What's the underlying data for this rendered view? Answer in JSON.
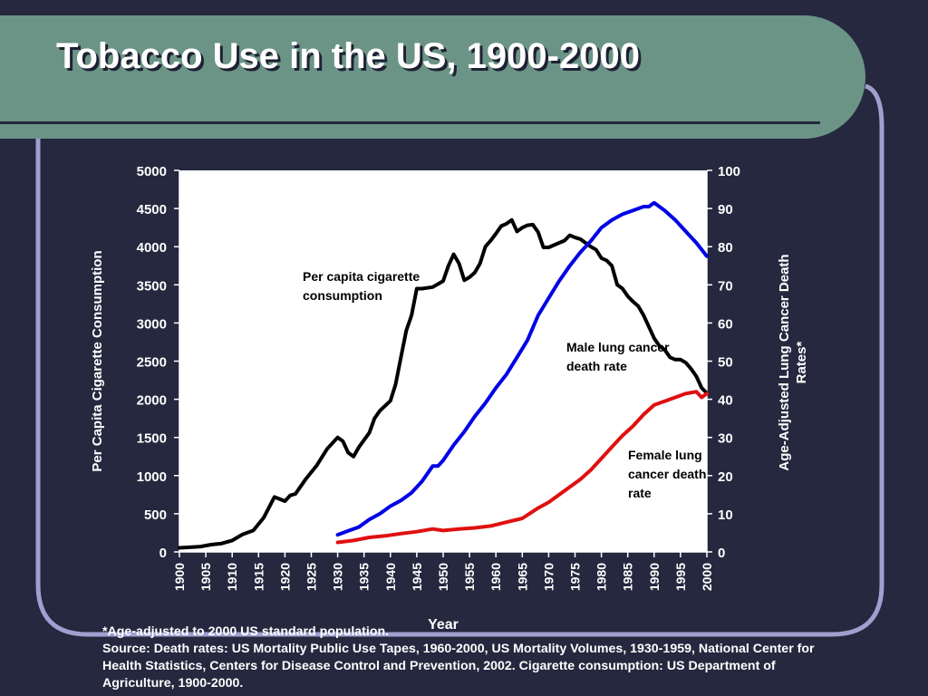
{
  "slide": {
    "title": "Tobacco Use in the US, 1900-2000",
    "footnote": "*Age-adjusted to 2000 US standard population.",
    "source": "Source: Death rates: US Mortality Public Use Tapes, 1960-2000, US Mortality Volumes, 1930-1959, National Center for Health Statistics, Centers for Disease Control and Prevention, 2002. Cigarette consumption: US Department of Agriculture, 1900-2000."
  },
  "colors": {
    "background": "#25283e",
    "title_bar": "#6b9487",
    "frame": "#9fa0cf",
    "plot_background": "#ffffff",
    "cigarette_series": "#000000",
    "male_series": "#0000e6",
    "female_series": "#e01010"
  },
  "chart_data": {
    "type": "line",
    "xlabel": "Year",
    "ylabel_left": "Per Capita Cigarette Consumption",
    "ylabel_right": "Age-Adjusted Lung Cancer Death Rates*",
    "xlim": [
      1900,
      2000
    ],
    "ylim_left": [
      0,
      5000
    ],
    "ylim_right": [
      0,
      100
    ],
    "x_ticks": [
      "1900",
      "1905",
      "1910",
      "1915",
      "1920",
      "1925",
      "1930",
      "1935",
      "1940",
      "1945",
      "1950",
      "1955",
      "1960",
      "1965",
      "1970",
      "1975",
      "1980",
      "1985",
      "1990",
      "1995",
      "2000"
    ],
    "y_ticks_left": [
      "0",
      "500",
      "1000",
      "1500",
      "2000",
      "2500",
      "3000",
      "3500",
      "4000",
      "4500",
      "5000"
    ],
    "y_ticks_right": [
      "0",
      "10",
      "20",
      "30",
      "40",
      "50",
      "60",
      "70",
      "80",
      "90",
      "100"
    ],
    "grid": false,
    "series": [
      {
        "name": "Per capita cigarette consumption",
        "axis": "left",
        "color": "#000000",
        "x": [
          1900,
          1902,
          1904,
          1906,
          1908,
          1910,
          1912,
          1914,
          1916,
          1918,
          1920,
          1921,
          1922,
          1924,
          1926,
          1928,
          1930,
          1931,
          1932,
          1933,
          1934,
          1936,
          1937,
          1938,
          1940,
          1941,
          1942,
          1943,
          1944,
          1945,
          1946,
          1948,
          1950,
          1951,
          1952,
          1953,
          1954,
          1955,
          1956,
          1957,
          1958,
          1959,
          1960,
          1961,
          1962,
          1963,
          1964,
          1965,
          1966,
          1967,
          1968,
          1969,
          1970,
          1971,
          1972,
          1973,
          1974,
          1975,
          1976,
          1977,
          1978,
          1979,
          1980,
          1981,
          1982,
          1983,
          1984,
          1985,
          1986,
          1987,
          1988,
          1989,
          1990,
          1991,
          1992,
          1993,
          1994,
          1995,
          1996,
          1997,
          1998,
          1999,
          2000
        ],
        "y": [
          54,
          60,
          70,
          95,
          110,
          150,
          230,
          280,
          450,
          720,
          665,
          740,
          760,
          960,
          1130,
          1350,
          1500,
          1450,
          1300,
          1250,
          1370,
          1560,
          1750,
          1850,
          1980,
          2200,
          2550,
          2900,
          3100,
          3450,
          3450,
          3470,
          3550,
          3750,
          3900,
          3780,
          3560,
          3600,
          3660,
          3780,
          4000,
          4080,
          4170,
          4270,
          4300,
          4350,
          4200,
          4250,
          4280,
          4290,
          4190,
          3990,
          3990,
          4020,
          4050,
          4080,
          4150,
          4120,
          4100,
          4050,
          4000,
          3960,
          3850,
          3820,
          3750,
          3500,
          3450,
          3350,
          3280,
          3220,
          3100,
          2950,
          2800,
          2700,
          2650,
          2550,
          2520,
          2520,
          2480,
          2400,
          2300,
          2150,
          2080
        ]
      },
      {
        "name": "Male lung cancer death rate",
        "axis": "right",
        "color": "#0000e6",
        "x": [
          1930,
          1932,
          1934,
          1936,
          1938,
          1940,
          1942,
          1944,
          1946,
          1948,
          1949,
          1950,
          1952,
          1954,
          1956,
          1958,
          1960,
          1962,
          1964,
          1966,
          1968,
          1970,
          1972,
          1974,
          1976,
          1978,
          1980,
          1982,
          1984,
          1986,
          1988,
          1989,
          1990,
          1992,
          1994,
          1996,
          1998,
          2000
        ],
        "y": [
          4.5,
          5.5,
          6.5,
          8.5,
          10,
          12,
          13.5,
          15.5,
          18.5,
          22.5,
          22.5,
          24,
          28,
          31.5,
          35.5,
          39,
          43,
          46.5,
          51,
          55.5,
          62,
          66.5,
          71,
          75,
          78.5,
          81.5,
          85,
          87,
          88.5,
          89.5,
          90.5,
          90.5,
          91.5,
          89.5,
          87,
          84,
          81,
          77.5
        ]
      },
      {
        "name": "Female lung cancer death rate",
        "axis": "right",
        "color": "#e01010",
        "x": [
          1930,
          1933,
          1936,
          1939,
          1942,
          1945,
          1948,
          1950,
          1953,
          1956,
          1959,
          1962,
          1965,
          1968,
          1970,
          1972,
          1974,
          1976,
          1978,
          1980,
          1982,
          1984,
          1986,
          1988,
          1990,
          1992,
          1994,
          1996,
          1998,
          1999,
          2000
        ],
        "y": [
          2.5,
          3,
          3.8,
          4.2,
          4.8,
          5.3,
          6,
          5.6,
          6,
          6.3,
          6.8,
          7.8,
          8.8,
          11.5,
          13,
          15,
          17,
          19,
          21.5,
          24.5,
          27.5,
          30.5,
          33,
          36,
          38.5,
          39.5,
          40.5,
          41.5,
          42,
          40.5,
          41.5
        ]
      }
    ],
    "annotations": [
      {
        "text": "Per capita cigarette consumption",
        "lines": [
          "Per capita cigarette",
          "consumption"
        ]
      },
      {
        "text": "Male lung cancer death rate",
        "lines": [
          "Male lung cancer",
          "death rate"
        ]
      },
      {
        "text": "Female lung cancer death rate",
        "lines": [
          "Female lung",
          "cancer death",
          "rate"
        ]
      }
    ]
  }
}
